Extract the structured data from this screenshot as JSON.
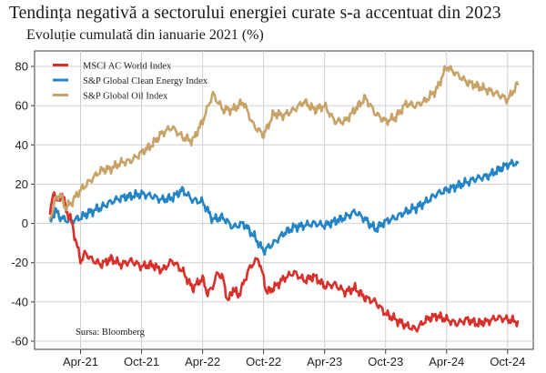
{
  "chart_data": {
    "type": "line",
    "title": "Tendința negativă a sectorului energiei curate s-a accentuat din 2023",
    "subtitle": "Evoluție cumulată din ianuarie 2021 (%)",
    "source": "Sursa: Bloomberg",
    "xlabel": "",
    "ylabel": "",
    "x_range": [
      0,
      46
    ],
    "ylim": [
      -60,
      80
    ],
    "y_ticks": [
      80,
      60,
      40,
      20,
      0,
      -20,
      -40,
      -60
    ],
    "x_ticks": [
      {
        "label": "Apr-21",
        "x": 3
      },
      {
        "label": "Oct-21",
        "x": 9
      },
      {
        "label": "Apr-22",
        "x": 15
      },
      {
        "label": "Oct-22",
        "x": 21
      },
      {
        "label": "Apr-23",
        "x": 27
      },
      {
        "label": "Oct-23",
        "x": 33
      },
      {
        "label": "Apr-24",
        "x": 39
      },
      {
        "label": "Oct-24",
        "x": 45
      }
    ],
    "grid": true,
    "legend_position": "top-left",
    "x_unit": "months since January 2021",
    "series": [
      {
        "name": "MSCI AC World Index",
        "color": "#d8302b",
        "points": [
          [
            0,
            5
          ],
          [
            0.4,
            17
          ],
          [
            0.8,
            10
          ],
          [
            1.2,
            16
          ],
          [
            1.6,
            6
          ],
          [
            2,
            3
          ],
          [
            2.5,
            -8
          ],
          [
            3,
            -19
          ],
          [
            3.5,
            -15
          ],
          [
            4,
            -18
          ],
          [
            5,
            -21
          ],
          [
            6,
            -18
          ],
          [
            7,
            -21
          ],
          [
            8,
            -19
          ],
          [
            9,
            -22
          ],
          [
            10,
            -21
          ],
          [
            11,
            -24
          ],
          [
            12,
            -19
          ],
          [
            13,
            -24
          ],
          [
            14,
            -33
          ],
          [
            15,
            -28
          ],
          [
            15.5,
            -36
          ],
          [
            16,
            -32
          ],
          [
            16.5,
            -25
          ],
          [
            17,
            -28
          ],
          [
            17.5,
            -40
          ],
          [
            18,
            -33
          ],
          [
            18.5,
            -37
          ],
          [
            19,
            -31
          ],
          [
            19.5,
            -24
          ],
          [
            20,
            -20
          ],
          [
            20.5,
            -18
          ],
          [
            21,
            -28
          ],
          [
            21.3,
            -35
          ],
          [
            22,
            -33
          ],
          [
            23,
            -28
          ],
          [
            24,
            -25
          ],
          [
            25,
            -29
          ],
          [
            26,
            -27
          ],
          [
            27,
            -32
          ],
          [
            28,
            -31
          ],
          [
            29,
            -35
          ],
          [
            30,
            -33
          ],
          [
            31,
            -38
          ],
          [
            32,
            -40
          ],
          [
            33,
            -46
          ],
          [
            34,
            -49
          ],
          [
            35,
            -52
          ],
          [
            36,
            -54
          ],
          [
            37,
            -49
          ],
          [
            38,
            -47
          ],
          [
            39,
            -49
          ],
          [
            40,
            -51
          ],
          [
            41,
            -49
          ],
          [
            42,
            -51
          ],
          [
            43,
            -50
          ],
          [
            44,
            -48
          ],
          [
            45,
            -49
          ],
          [
            46,
            -50
          ]
        ]
      },
      {
        "name": "S&P Global Clean Energy Index",
        "color": "#2384c6",
        "points": [
          [
            0,
            0
          ],
          [
            0.5,
            7
          ],
          [
            1,
            3
          ],
          [
            1.5,
            2
          ],
          [
            2,
            1
          ],
          [
            3,
            3
          ],
          [
            4,
            6
          ],
          [
            5,
            8
          ],
          [
            6,
            11
          ],
          [
            7,
            13
          ],
          [
            8,
            14
          ],
          [
            9,
            15
          ],
          [
            10,
            14
          ],
          [
            11,
            12
          ],
          [
            12,
            13
          ],
          [
            13,
            17
          ],
          [
            14,
            12
          ],
          [
            15,
            11
          ],
          [
            16,
            2
          ],
          [
            17,
            3
          ],
          [
            18,
            -2
          ],
          [
            19,
            0
          ],
          [
            20,
            -6
          ],
          [
            21,
            -14
          ],
          [
            22,
            -10
          ],
          [
            23,
            -5
          ],
          [
            24,
            -2
          ],
          [
            25,
            -1
          ],
          [
            26,
            0
          ],
          [
            27,
            -1
          ],
          [
            28,
            1
          ],
          [
            29,
            3
          ],
          [
            30,
            6
          ],
          [
            31,
            2
          ],
          [
            32,
            -3
          ],
          [
            33,
            1
          ],
          [
            34,
            3
          ],
          [
            35,
            6
          ],
          [
            36,
            8
          ],
          [
            37,
            11
          ],
          [
            38,
            15
          ],
          [
            39,
            17
          ],
          [
            40,
            19
          ],
          [
            41,
            21
          ],
          [
            42,
            23
          ],
          [
            43,
            24
          ],
          [
            44,
            27
          ],
          [
            45,
            30
          ],
          [
            46,
            31
          ]
        ]
      },
      {
        "name": "S&P Global Oil Index",
        "color": "#c7a368",
        "points": [
          [
            0,
            2
          ],
          [
            0.5,
            12
          ],
          [
            1,
            15
          ],
          [
            1.5,
            8
          ],
          [
            2,
            10
          ],
          [
            3,
            17
          ],
          [
            4,
            22
          ],
          [
            5,
            27
          ],
          [
            6,
            28
          ],
          [
            7,
            31
          ],
          [
            8,
            32
          ],
          [
            9,
            36
          ],
          [
            10,
            40
          ],
          [
            11,
            46
          ],
          [
            12,
            49
          ],
          [
            13,
            44
          ],
          [
            14,
            42
          ],
          [
            15,
            52
          ],
          [
            16,
            66
          ],
          [
            17,
            58
          ],
          [
            18,
            58
          ],
          [
            19,
            62
          ],
          [
            20,
            50
          ],
          [
            21,
            45
          ],
          [
            22,
            56
          ],
          [
            23,
            55
          ],
          [
            24,
            58
          ],
          [
            25,
            62
          ],
          [
            26,
            58
          ],
          [
            27,
            60
          ],
          [
            28,
            52
          ],
          [
            29,
            52
          ],
          [
            30,
            58
          ],
          [
            31,
            64
          ],
          [
            32,
            56
          ],
          [
            33,
            52
          ],
          [
            34,
            54
          ],
          [
            35,
            61
          ],
          [
            36,
            60
          ],
          [
            37,
            63
          ],
          [
            38,
            68
          ],
          [
            39,
            80
          ],
          [
            40,
            76
          ],
          [
            41,
            72
          ],
          [
            42,
            70
          ],
          [
            43,
            68
          ],
          [
            44,
            66
          ],
          [
            45,
            63
          ],
          [
            46,
            71
          ]
        ]
      }
    ]
  }
}
